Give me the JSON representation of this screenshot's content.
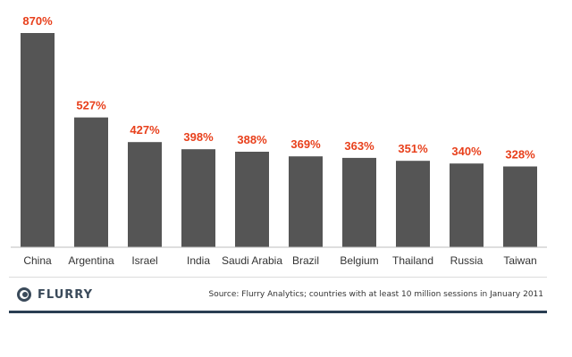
{
  "chart_data": {
    "type": "bar",
    "categories": [
      "China",
      "Argentina",
      "Israel",
      "India",
      "Saudi Arabia",
      "Brazil",
      "Belgium",
      "Thailand",
      "Russia",
      "Taiwan"
    ],
    "values": [
      870,
      527,
      427,
      398,
      388,
      369,
      363,
      351,
      340,
      328
    ],
    "value_labels": [
      "870%",
      "527%",
      "427%",
      "398%",
      "388%",
      "369%",
      "363%",
      "351%",
      "340%",
      "328%"
    ],
    "unit": "%",
    "ylim": [
      0,
      870
    ],
    "grid": false,
    "legend": "none",
    "colors": {
      "bar": "#555555",
      "value_label": "#e8401c"
    }
  },
  "footer": {
    "logo_text": "FLURRY",
    "logo_icon": "flurry-logo-icon",
    "source": "Source: Flurry Analytics; countries with at least 10 million sessions in January 2011"
  }
}
